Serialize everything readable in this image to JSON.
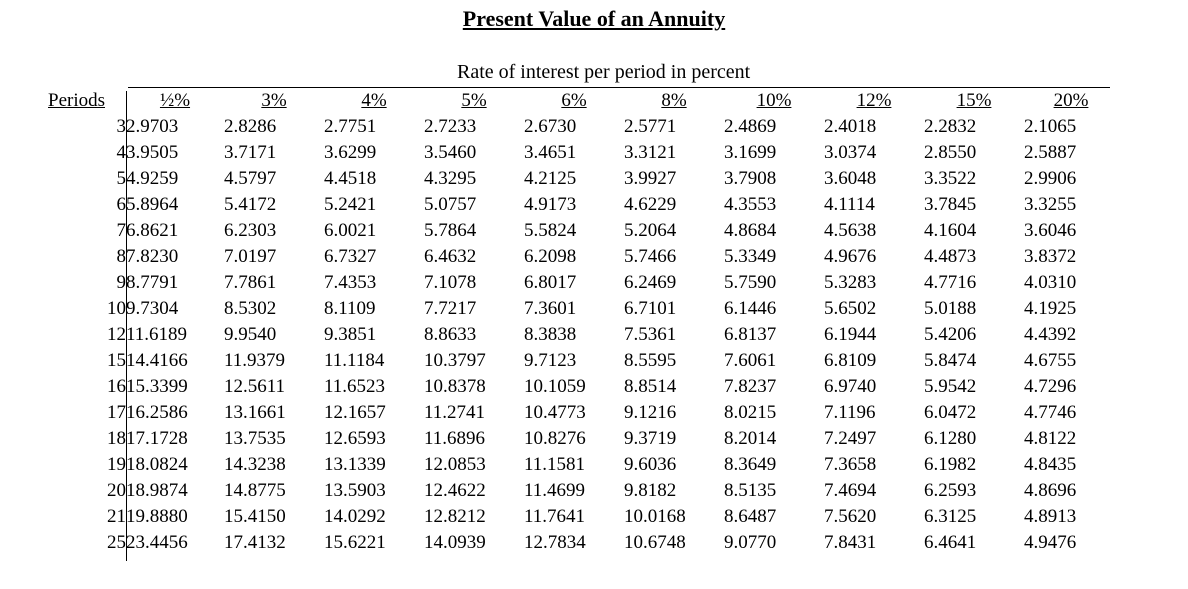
{
  "title": "Present Value of an Annuity",
  "subtitle": "Rate of interest per period in percent",
  "table": {
    "period_header": "Periods",
    "rates": [
      "½%",
      "3%",
      "4%",
      "5%",
      "6%",
      "8%",
      "10%",
      "12%",
      "15%",
      "20%"
    ],
    "rows": [
      {
        "period": "3",
        "values": [
          "2.9703",
          "2.8286",
          "2.7751",
          "2.7233",
          "2.6730",
          "2.5771",
          "2.4869",
          "2.4018",
          "2.2832",
          "2.1065"
        ]
      },
      {
        "period": "4",
        "values": [
          "3.9505",
          "3.7171",
          "3.6299",
          "3.5460",
          "3.4651",
          "3.3121",
          "3.1699",
          "3.0374",
          "2.8550",
          "2.5887"
        ]
      },
      {
        "period": "5",
        "values": [
          "4.9259",
          "4.5797",
          "4.4518",
          "4.3295",
          "4.2125",
          "3.9927",
          "3.7908",
          "3.6048",
          "3.3522",
          "2.9906"
        ]
      },
      {
        "period": "6",
        "values": [
          "5.8964",
          "5.4172",
          "5.2421",
          "5.0757",
          "4.9173",
          "4.6229",
          "4.3553",
          "4.1114",
          "3.7845",
          "3.3255"
        ]
      },
      {
        "period": "7",
        "values": [
          "6.8621",
          "6.2303",
          "6.0021",
          "5.7864",
          "5.5824",
          "5.2064",
          "4.8684",
          "4.5638",
          "4.1604",
          "3.6046"
        ]
      },
      {
        "period": "8",
        "values": [
          "7.8230",
          "7.0197",
          "6.7327",
          "6.4632",
          "6.2098",
          "5.7466",
          "5.3349",
          "4.9676",
          "4.4873",
          "3.8372"
        ]
      },
      {
        "period": "9",
        "values": [
          "8.7791",
          "7.7861",
          "7.4353",
          "7.1078",
          "6.8017",
          "6.2469",
          "5.7590",
          "5.3283",
          "4.7716",
          "4.0310"
        ]
      },
      {
        "period": "10",
        "values": [
          "9.7304",
          "8.5302",
          "8.1109",
          "7.7217",
          "7.3601",
          "6.7101",
          "6.1446",
          "5.6502",
          "5.0188",
          "4.1925"
        ]
      },
      {
        "period": "12",
        "values": [
          "11.6189",
          "9.9540",
          "9.3851",
          "8.8633",
          "8.3838",
          "7.5361",
          "6.8137",
          "6.1944",
          "5.4206",
          "4.4392"
        ]
      },
      {
        "period": "15",
        "values": [
          "14.4166",
          "11.9379",
          "11.1184",
          "10.3797",
          "9.7123",
          "8.5595",
          "7.6061",
          "6.8109",
          "5.8474",
          "4.6755"
        ]
      },
      {
        "period": "16",
        "values": [
          "15.3399",
          "12.5611",
          "11.6523",
          "10.8378",
          "10.1059",
          "8.8514",
          "7.8237",
          "6.9740",
          "5.9542",
          "4.7296"
        ]
      },
      {
        "period": "17",
        "values": [
          "16.2586",
          "13.1661",
          "12.1657",
          "11.2741",
          "10.4773",
          "9.1216",
          "8.0215",
          "7.1196",
          "6.0472",
          "4.7746"
        ]
      },
      {
        "period": "18",
        "values": [
          "17.1728",
          "13.7535",
          "12.6593",
          "11.6896",
          "10.8276",
          "9.3719",
          "8.2014",
          "7.2497",
          "6.1280",
          "4.8122"
        ]
      },
      {
        "period": "19",
        "values": [
          "18.0824",
          "14.3238",
          "13.1339",
          "12.0853",
          "11.1581",
          "9.6036",
          "8.3649",
          "7.3658",
          "6.1982",
          "4.8435"
        ]
      },
      {
        "period": "20",
        "values": [
          "18.9874",
          "14.8775",
          "13.5903",
          "12.4622",
          "11.4699",
          "9.8182",
          "8.5135",
          "7.4694",
          "6.2593",
          "4.8696"
        ]
      },
      {
        "period": "21",
        "values": [
          "19.8880",
          "15.4150",
          "14.0292",
          "12.8212",
          "11.7641",
          "10.0168",
          "8.6487",
          "7.5620",
          "6.3125",
          "4.8913"
        ]
      },
      {
        "period": "25",
        "values": [
          "23.4456",
          "17.4132",
          "15.6221",
          "14.0939",
          "12.7834",
          "10.6748",
          "9.0770",
          "7.8431",
          "6.4641",
          "4.9476"
        ]
      }
    ]
  }
}
